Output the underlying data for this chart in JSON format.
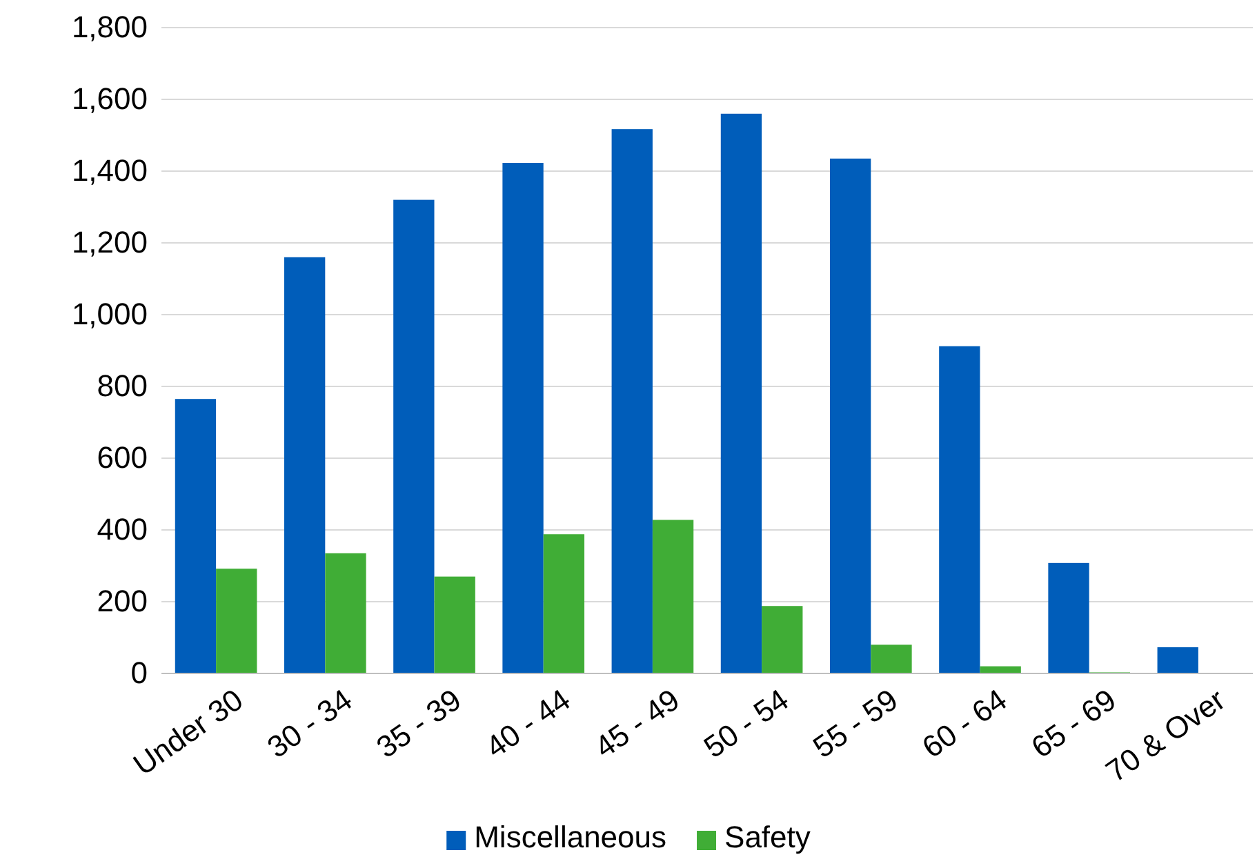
{
  "chart_data": {
    "type": "bar",
    "categories": [
      "Under 30",
      "30 - 34",
      "35 - 39",
      "40 - 44",
      "45 - 49",
      "50 - 54",
      "55 - 59",
      "60 - 64",
      "65 - 69",
      "70 & Over"
    ],
    "series": [
      {
        "name": "Miscellaneous",
        "color": "#005dba",
        "values": [
          765,
          1160,
          1320,
          1423,
          1517,
          1560,
          1435,
          912,
          308,
          73
        ]
      },
      {
        "name": "Safety",
        "color": "#40ad36",
        "values": [
          292,
          335,
          270,
          388,
          428,
          188,
          80,
          20,
          3,
          0
        ]
      }
    ],
    "ylim": [
      0,
      1800
    ],
    "yticks": [
      {
        "value": 0,
        "label": "0"
      },
      {
        "value": 200,
        "label": "200"
      },
      {
        "value": 400,
        "label": "400"
      },
      {
        "value": 600,
        "label": "600"
      },
      {
        "value": 800,
        "label": "800"
      },
      {
        "value": 1000,
        "label": "1,000"
      },
      {
        "value": 1200,
        "label": "1,200"
      },
      {
        "value": 1400,
        "label": "1,400"
      },
      {
        "value": 1600,
        "label": "1,600"
      },
      {
        "value": 1800,
        "label": "1,800"
      }
    ],
    "grid": "y",
    "legend": "bottom"
  }
}
